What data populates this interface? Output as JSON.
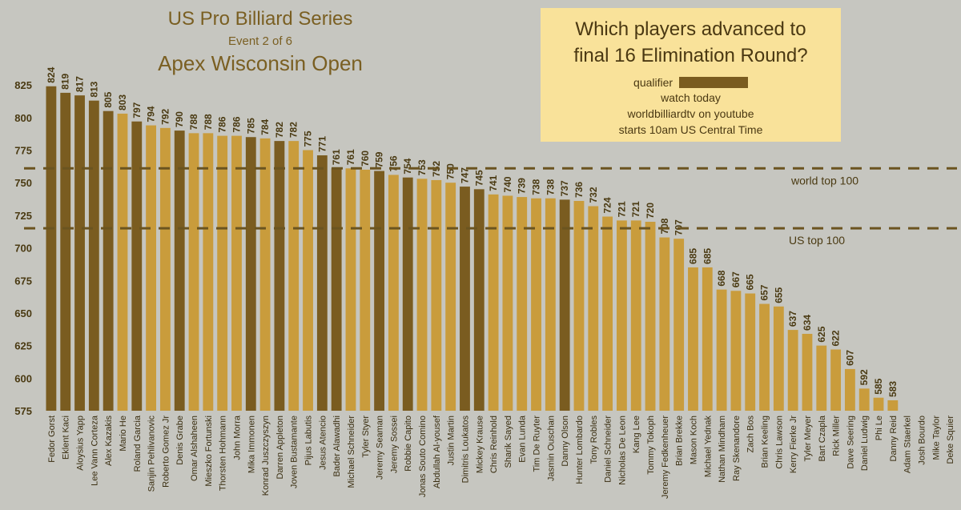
{
  "title": {
    "line1": "US Pro Billiard Series",
    "line2": "Event 2 of 6",
    "line3": "Apex Wisconsin Open"
  },
  "infobox": {
    "question_line1": "Which players advanced to",
    "question_line2": "final 16 Elimination Round?",
    "legend_label": "qualifier",
    "line3": "watch today",
    "line4": "worldbilliardtv on youtube",
    "line5": "starts 10am US Central Time"
  },
  "colors": {
    "background": "#c6c6c0",
    "qualifier": "#7a5c20",
    "non_qualifier": "#c99c3c",
    "reference_line": "#6b5420",
    "text": "#4a3a12"
  },
  "chart_data": {
    "type": "bar",
    "ylim": [
      575,
      830
    ],
    "yticks": [
      575,
      600,
      625,
      650,
      675,
      700,
      725,
      750,
      775,
      800,
      825
    ],
    "categories": [
      "Fedor Gorst",
      "Eklent Kaci",
      "Aloysius Yapp",
      "Lee Vann Corteza",
      "Alex Kazakis",
      "Mario He",
      "Roland Garcia",
      "Sanjin Pehlivanovic",
      "Roberto Gomez Jr",
      "Denis Grabe",
      "Omar Alshaheen",
      "Mieszko Fortunski",
      "Thorsten Hohmann",
      "John Morra",
      "Mika Immonen",
      "Konrad Juszczyszyn",
      "Darren Appleton",
      "Joven Bustamante",
      "Pijus Labutis",
      "Jesus Atencio",
      "Bader Alawadhi",
      "Michael Schneider",
      "Tyler Styer",
      "Jeremy Seaman",
      "Jeremy Sossei",
      "Robbie Capito",
      "Jonas Souto Comino",
      "Abdullah Al-yousef",
      "Justin Martin",
      "Dimitris Loukatos",
      "Mickey Krause",
      "Chris Reinhold",
      "Sharik Sayed",
      "Evan Lunda",
      "Tim De Ruyter",
      "Jasmin Ouschan",
      "Danny Olson",
      "Hunter Lombardo",
      "Tony Robles",
      "Daniel Schneider",
      "Nicholas De Leon",
      "Kang Lee",
      "Tommy Tokoph",
      "Jeremy Fedkenheuer",
      "Brian Brekke",
      "Mason Koch",
      "Michael Yednak",
      "Nathan Mindham",
      "Ray Skenandore",
      "Zach Bos",
      "Brian Keeling",
      "Chris Lawson",
      "Kerry Fierke Jr",
      "Tyler Meyer",
      "Bart Czapla",
      "Rick Miller",
      "Dave Seering",
      "Daniel Ludwig",
      "Phi Le",
      "Danny Reid",
      "Adam Staerkel",
      "Josh Bourdo",
      "Mike Taylor",
      "Deke Squier"
    ],
    "values": [
      824,
      819,
      817,
      813,
      805,
      803,
      797,
      794,
      792,
      790,
      788,
      788,
      786,
      786,
      785,
      784,
      782,
      782,
      775,
      771,
      761,
      761,
      760,
      759,
      756,
      754,
      753,
      752,
      750,
      747,
      745,
      741,
      740,
      739,
      738,
      738,
      737,
      736,
      732,
      724,
      721,
      721,
      720,
      708,
      707,
      685,
      685,
      668,
      667,
      665,
      657,
      655,
      637,
      634,
      625,
      622,
      607,
      592,
      585,
      583,
      null,
      null,
      null,
      null
    ],
    "qualifier": [
      true,
      true,
      true,
      true,
      true,
      false,
      true,
      false,
      false,
      true,
      false,
      false,
      false,
      false,
      true,
      false,
      true,
      false,
      false,
      true,
      true,
      false,
      false,
      true,
      false,
      true,
      false,
      false,
      false,
      true,
      true,
      false,
      false,
      false,
      false,
      false,
      true,
      false,
      false,
      false,
      false,
      false,
      false,
      false,
      false,
      false,
      false,
      false,
      false,
      false,
      false,
      false,
      false,
      false,
      false,
      false,
      false,
      false,
      false,
      false,
      false,
      false,
      false,
      false
    ],
    "reference_lines": [
      {
        "label": "world top 100",
        "value": 761
      },
      {
        "label": "US top 100",
        "value": 715
      }
    ]
  }
}
